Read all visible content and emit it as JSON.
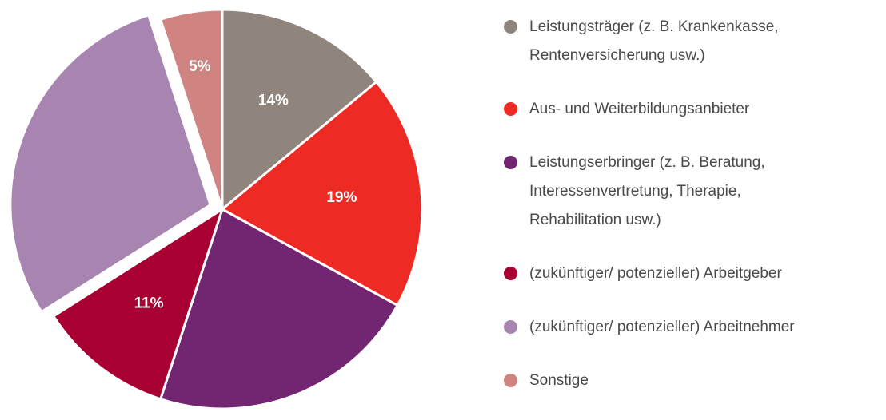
{
  "chart_data": {
    "type": "pie",
    "categories": [
      "Leistungsträger (z. B. Krankenkasse, Rentenversicherung usw.)",
      "Aus- und Weiterbildungsanbieter",
      "Leistungserbringer (z. B. Beratung, Interessenvertretung, Therapie, Rehabilitation usw.)",
      "(zukünftiger/ potenzieller) Arbeitgeber",
      "(zukünftiger/ potenzieller) Arbeitnehmer",
      "Sonstige"
    ],
    "values": [
      14,
      19,
      22,
      11,
      29,
      5
    ],
    "value_labels": [
      "14%",
      "19%",
      null,
      "11%",
      null,
      "5%"
    ],
    "colors": [
      "#8f857c",
      "#ee2a24",
      "#722672",
      "#a80032",
      "#a785b0",
      "#d08482"
    ],
    "explode": [
      false,
      false,
      false,
      false,
      true,
      false
    ],
    "legend": "right"
  }
}
